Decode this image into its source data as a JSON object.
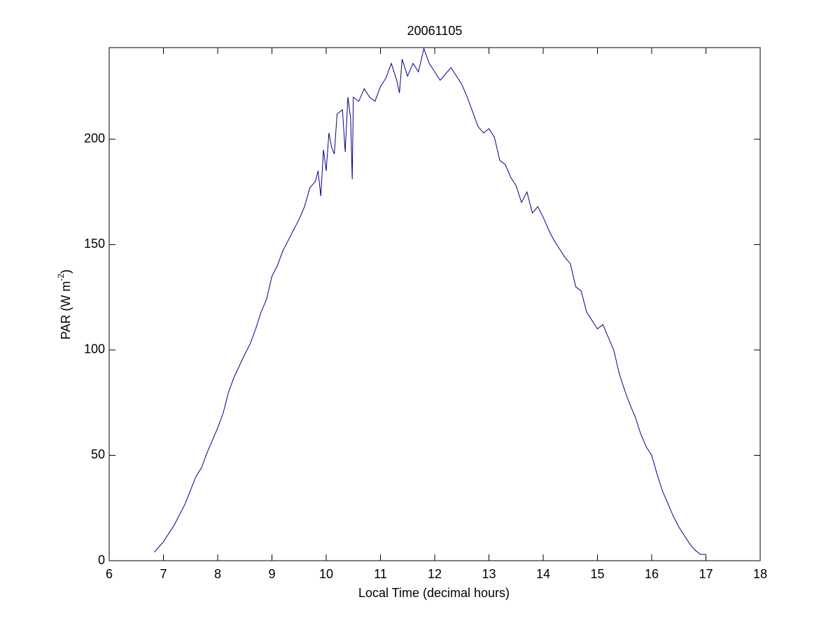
{
  "chart_data": {
    "type": "line",
    "title": "20061105",
    "x_label": "Local Time (decimal hours)",
    "y_label_parts": [
      "PAR (W m",
      "-2",
      ")"
    ],
    "x": [
      6.83,
      7.0,
      7.2,
      7.4,
      7.6,
      7.7,
      7.8,
      8.0,
      8.1,
      8.2,
      8.3,
      8.5,
      8.6,
      8.7,
      8.8,
      8.9,
      9.0,
      9.1,
      9.2,
      9.3,
      9.4,
      9.5,
      9.6,
      9.7,
      9.8,
      9.85,
      9.9,
      9.95,
      10.0,
      10.05,
      10.1,
      10.15,
      10.2,
      10.3,
      10.35,
      10.4,
      10.45,
      10.48,
      10.5,
      10.6,
      10.7,
      10.8,
      10.9,
      11.0,
      11.1,
      11.2,
      11.3,
      11.35,
      11.4,
      11.5,
      11.6,
      11.7,
      11.8,
      11.9,
      12.0,
      12.1,
      12.2,
      12.3,
      12.4,
      12.5,
      12.6,
      12.7,
      12.8,
      12.9,
      13.0,
      13.1,
      13.2,
      13.3,
      13.4,
      13.5,
      13.6,
      13.7,
      13.8,
      13.9,
      14.0,
      14.1,
      14.2,
      14.3,
      14.4,
      14.5,
      14.6,
      14.7,
      14.8,
      14.9,
      15.0,
      15.1,
      15.2,
      15.3,
      15.4,
      15.5,
      15.6,
      15.7,
      15.8,
      15.9,
      16.0,
      16.1,
      16.2,
      16.3,
      16.4,
      16.5,
      16.6,
      16.7,
      16.8,
      16.9,
      17.0
    ],
    "series": [
      {
        "color": "#00008b",
        "values": [
          4,
          9,
          17,
          27,
          40,
          44,
          51,
          63,
          70,
          80,
          87,
          98,
          103,
          110,
          118,
          124,
          135,
          140,
          147,
          152,
          157,
          162,
          168,
          177,
          180,
          185,
          173,
          195,
          185,
          203,
          196,
          193,
          212,
          214,
          194,
          220,
          210,
          181,
          220,
          218,
          224,
          220,
          218,
          225,
          229,
          236,
          228,
          222,
          238,
          230,
          236,
          232,
          243,
          236,
          232,
          228,
          231,
          234,
          230,
          226,
          220,
          213,
          206,
          203,
          205,
          201,
          190,
          188,
          182,
          178,
          170,
          175,
          165,
          168,
          163,
          157,
          152,
          148,
          144,
          141,
          130,
          128,
          118,
          114,
          110,
          112,
          106,
          100,
          89,
          81,
          74,
          68,
          60,
          54,
          50,
          41,
          33,
          27,
          21,
          16,
          12,
          8,
          5,
          3,
          3
        ]
      }
    ],
    "xlim": [
      6,
      18
    ],
    "xticks": [
      6,
      7,
      8,
      9,
      10,
      11,
      12,
      13,
      14,
      15,
      16,
      17,
      18
    ],
    "ylim": [
      0,
      243.5
    ],
    "yticks": [
      0,
      50,
      100,
      150,
      200
    ],
    "grid": false
  }
}
